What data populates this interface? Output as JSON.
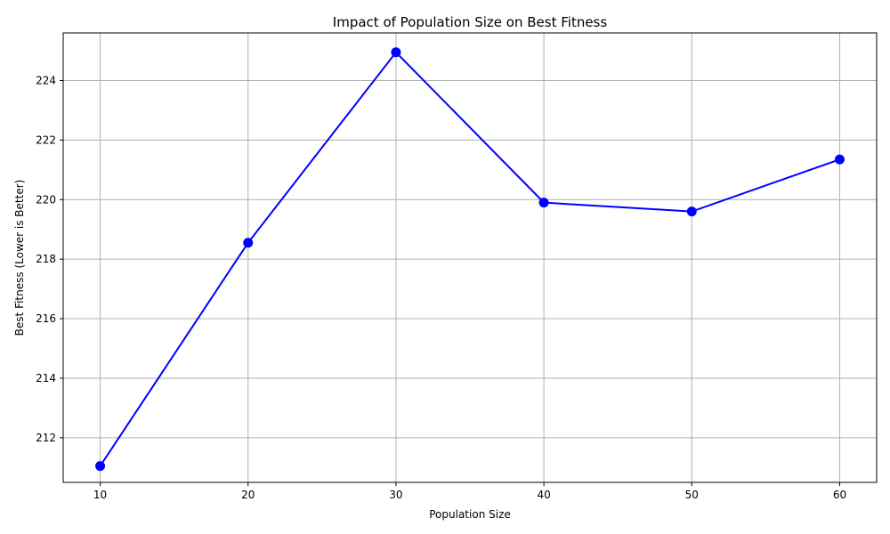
{
  "chart_data": {
    "type": "line",
    "title": "Impact of Population Size on Best Fitness",
    "xlabel": "Population Size",
    "ylabel": "Best Fitness (Lower is Better)",
    "x": [
      10,
      20,
      30,
      40,
      50,
      60
    ],
    "series": [
      {
        "values": [
          211.05,
          218.55,
          224.95,
          219.9,
          219.6,
          221.35
        ],
        "color": "#0000ff",
        "marker": "circle"
      }
    ],
    "xlim": [
      7.5,
      62.5
    ],
    "ylim": [
      210.5,
      225.6
    ],
    "xticks": [
      10,
      20,
      30,
      40,
      50,
      60
    ],
    "yticks": [
      212,
      214,
      216,
      218,
      220,
      222,
      224
    ],
    "grid": true,
    "legend": "none"
  }
}
